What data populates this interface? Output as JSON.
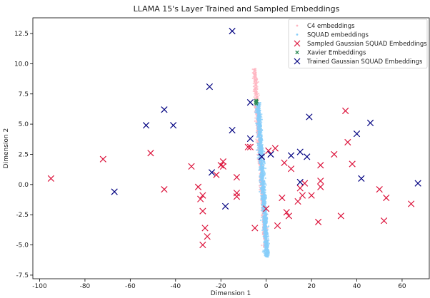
{
  "chart_data": {
    "type": "scatter",
    "title": "LLAMA 15's Layer Trained and Sampled Embeddings",
    "xlabel": "Dimension 1",
    "ylabel": "Dimension 2",
    "xlim": [
      -103,
      72
    ],
    "ylim": [
      -7.8,
      13.8
    ],
    "xticks": [
      -100,
      -80,
      -60,
      -40,
      -20,
      0,
      20,
      40,
      60
    ],
    "yticks": [
      -7.5,
      -5.0,
      -2.5,
      0.0,
      2.5,
      5.0,
      7.5,
      10.0,
      12.5
    ],
    "grid": false,
    "legend_position": "top-right",
    "series": [
      {
        "name": "C4 embeddings",
        "marker": "dot",
        "color": "#ffb6c1",
        "cloud": {
          "y_range": [
            -5.2,
            9.6
          ],
          "x_center_at_y0": -2.0,
          "x_slope_per_y": -0.32,
          "x_spread": 0.9
        }
      },
      {
        "name": "SQUAD embeddings",
        "marker": "dot",
        "color": "#87cefa",
        "cloud": {
          "y_range": [
            -6.0,
            6.8
          ],
          "x_center_at_y0": -1.5,
          "x_slope_per_y": -0.32,
          "x_spread": 1.1
        }
      },
      {
        "name": "Sampled Gaussian SQUAD Embeddings",
        "marker": "x",
        "color": "#dc143c",
        "points": [
          [
            -95,
            0.5
          ],
          [
            -72,
            2.1
          ],
          [
            -51,
            2.6
          ],
          [
            -45,
            -0.4
          ],
          [
            -33,
            1.5
          ],
          [
            -30,
            -0.2
          ],
          [
            -29,
            -1.2
          ],
          [
            -28,
            -0.9
          ],
          [
            -28,
            -2.2
          ],
          [
            -27,
            -3.6
          ],
          [
            -28,
            -5.0
          ],
          [
            -26,
            -4.3
          ],
          [
            -22,
            0.8
          ],
          [
            -20,
            1.6
          ],
          [
            -19,
            1.9
          ],
          [
            -19,
            1.5
          ],
          [
            -13,
            0.6
          ],
          [
            -13,
            -0.7
          ],
          [
            -13,
            -1.0
          ],
          [
            -8,
            3.1
          ],
          [
            -7,
            3.1
          ],
          [
            -5,
            -3.6
          ],
          [
            -2,
            2.3
          ],
          [
            0,
            -2.0
          ],
          [
            1,
            2.8
          ],
          [
            4,
            3.0
          ],
          [
            5,
            -3.4
          ],
          [
            7,
            -1.1
          ],
          [
            8,
            1.8
          ],
          [
            9,
            -2.3
          ],
          [
            10,
            -2.6
          ],
          [
            11,
            1.3
          ],
          [
            14,
            -1.4
          ],
          [
            15,
            -0.3
          ],
          [
            16,
            -0.9
          ],
          [
            17,
            0.1
          ],
          [
            20,
            -0.9
          ],
          [
            23,
            -3.1
          ],
          [
            24,
            0.3
          ],
          [
            24,
            -0.2
          ],
          [
            24,
            1.6
          ],
          [
            30,
            2.5
          ],
          [
            33,
            -2.6
          ],
          [
            35,
            6.1
          ],
          [
            36,
            3.5
          ],
          [
            38,
            1.7
          ],
          [
            50,
            -0.4
          ],
          [
            52,
            -3.0
          ],
          [
            53,
            -1.1
          ],
          [
            64,
            -1.6
          ]
        ]
      },
      {
        "name": "Xavier Embeddings",
        "marker": "x-small",
        "color": "#2e8b57",
        "points": [
          [
            -4.6,
            6.8
          ],
          [
            -4.3,
            6.9
          ],
          [
            -4.4,
            6.7
          ],
          [
            -4.2,
            6.85
          ],
          [
            -4.5,
            6.95
          ]
        ]
      },
      {
        "name": "Trained Gaussian SQUAD Embeddings",
        "marker": "x",
        "color": "#000080",
        "points": [
          [
            -67,
            -0.6
          ],
          [
            -53,
            4.9
          ],
          [
            -45,
            6.2
          ],
          [
            -41,
            4.9
          ],
          [
            -25,
            8.1
          ],
          [
            -24,
            1.0
          ],
          [
            -18,
            -1.8
          ],
          [
            -15,
            12.7
          ],
          [
            -15,
            4.5
          ],
          [
            -7,
            6.8
          ],
          [
            -7,
            3.8
          ],
          [
            -2,
            2.3
          ],
          [
            2,
            2.5
          ],
          [
            11,
            2.4
          ],
          [
            15,
            2.7
          ],
          [
            15,
            0.2
          ],
          [
            18,
            2.3
          ],
          [
            19,
            5.6
          ],
          [
            40,
            4.2
          ],
          [
            42,
            0.5
          ],
          [
            46,
            5.1
          ],
          [
            67,
            0.1
          ]
        ]
      }
    ]
  }
}
